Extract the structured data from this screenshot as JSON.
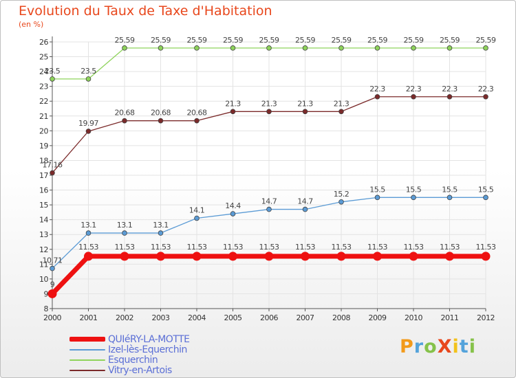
{
  "title": "Evolution du Taux de Taxe d'Habitation",
  "subtitle": "(en %)",
  "logo": {
    "text": "ProXiti",
    "letters": [
      {
        "ch": "P",
        "color": "#f29a1b"
      },
      {
        "ch": "r",
        "color": "#54a3db"
      },
      {
        "ch": "o",
        "color": "#86c24a"
      },
      {
        "ch": "X",
        "color": "#e8471c"
      },
      {
        "ch": "i",
        "color": "#f2c21b"
      },
      {
        "ch": "t",
        "color": "#54a3db"
      },
      {
        "ch": "i",
        "color": "#86c24a"
      }
    ]
  },
  "chart_data": {
    "type": "line",
    "title": "Evolution du Taux de Taxe d'Habitation",
    "ylabel": "(en %)",
    "x": [
      "2000",
      "2001",
      "2002",
      "2003",
      "2004",
      "2005",
      "2006",
      "2007",
      "2008",
      "2009",
      "2010",
      "2011",
      "2012"
    ],
    "ylim": [
      8,
      26
    ],
    "yticks": [
      8,
      9,
      10,
      11,
      12,
      13,
      14,
      15,
      16,
      17,
      18,
      19,
      20,
      21,
      22,
      23,
      24,
      25,
      26
    ],
    "grid": true,
    "legend_position": "bottom-left",
    "series": [
      {
        "name": "QUIéRY-LA-MOTTE",
        "color": "#ee1111",
        "values": [
          9,
          11.53,
          11.53,
          11.53,
          11.53,
          11.53,
          11.53,
          11.53,
          11.53,
          11.53,
          11.53,
          11.53,
          11.53
        ],
        "labels": [
          "9",
          "11.53",
          "11.53",
          "11.53",
          "11.53",
          "11.53",
          "11.53",
          "11.53",
          "11.53",
          "11.53",
          "11.53",
          "11.53",
          "11.53"
        ]
      },
      {
        "name": "Izel-lès-Equerchin",
        "color": "#5b9bd5",
        "values": [
          10.71,
          13.1,
          13.1,
          13.1,
          14.1,
          14.4,
          14.7,
          14.7,
          15.2,
          15.5,
          15.5,
          15.5,
          15.5
        ],
        "labels": [
          "10.71",
          "13.1",
          "13.1",
          "13.1",
          "14.1",
          "14.4",
          "14.7",
          "14.7",
          "15.2",
          "15.5",
          "15.5",
          "15.5",
          "15.5"
        ]
      },
      {
        "name": "Esquerchin",
        "color": "#8ed35b",
        "values": [
          23.5,
          23.5,
          25.59,
          25.59,
          25.59,
          25.59,
          25.59,
          25.59,
          25.59,
          25.59,
          25.59,
          25.59,
          25.59
        ],
        "labels": [
          "23.5",
          "23.5",
          "25.59",
          "25.59",
          "25.59",
          "25.59",
          "25.59",
          "25.59",
          "25.59",
          "25.59",
          "25.59",
          "25.59",
          "25.59"
        ]
      },
      {
        "name": "Vitry-en-Artois",
        "color": "#7b2a2a",
        "values": [
          17.16,
          19.97,
          20.68,
          20.68,
          20.68,
          21.3,
          21.3,
          21.3,
          21.3,
          22.3,
          22.3,
          22.3,
          22.3
        ],
        "labels": [
          "17.16",
          "19.97",
          "20.68",
          "20.68",
          "20.68",
          "21.3",
          "21.3",
          "21.3",
          "21.3",
          "22.3",
          "22.3",
          "22.3",
          "22.3"
        ]
      }
    ]
  }
}
